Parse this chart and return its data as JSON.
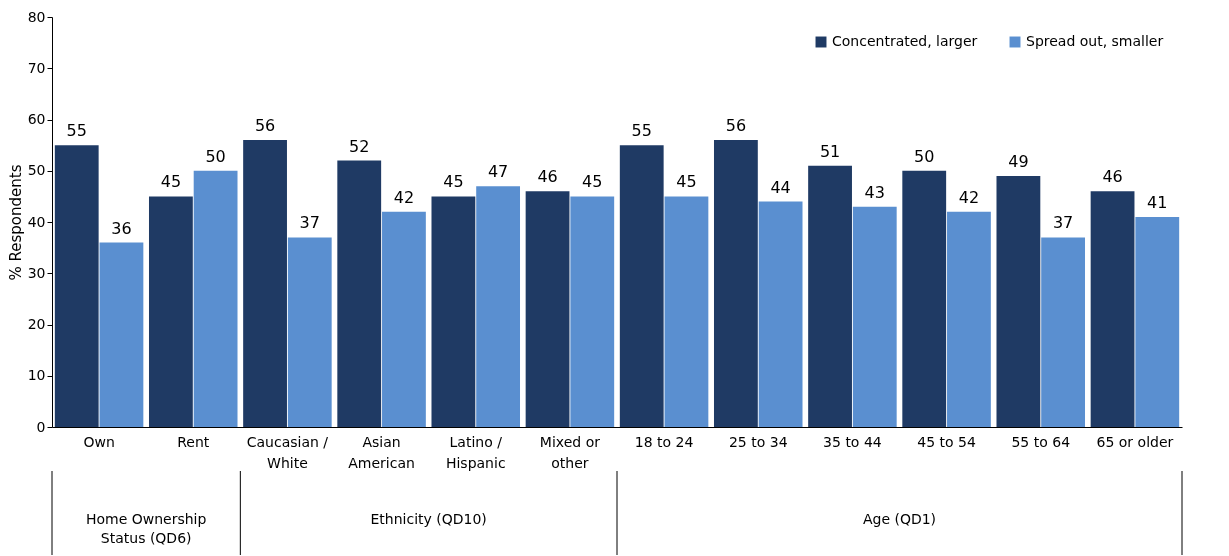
{
  "chart_data": {
    "type": "bar",
    "ylabel": "% Respondents",
    "categories": [
      "Own",
      "Rent",
      "Caucasian / White",
      "Asian American",
      "Latino / Hispanic",
      "Mixed or other",
      "18 to 24",
      "25 to 34",
      "35 to 44",
      "45 to 54",
      "55 to 64",
      "65 or older"
    ],
    "series": [
      {
        "name": "Concentrated, larger",
        "color": "#1f3a64",
        "values": [
          55,
          45,
          56,
          52,
          45,
          46,
          55,
          56,
          51,
          50,
          49,
          46
        ]
      },
      {
        "name": "Spread out, smaller",
        "color": "#5a8fd0",
        "values": [
          36,
          50,
          37,
          42,
          47,
          45,
          45,
          44,
          43,
          42,
          37,
          41
        ]
      }
    ],
    "ylim": [
      0,
      80
    ],
    "yticks": [
      0,
      10,
      20,
      30,
      40,
      50,
      60,
      70,
      80
    ],
    "grid": false,
    "legend": "top right",
    "data_labels": true,
    "annotations": [
      "Home Ownership Status (QD6)",
      "Ethnicity (QD10)",
      "Age (QD1)"
    ]
  }
}
